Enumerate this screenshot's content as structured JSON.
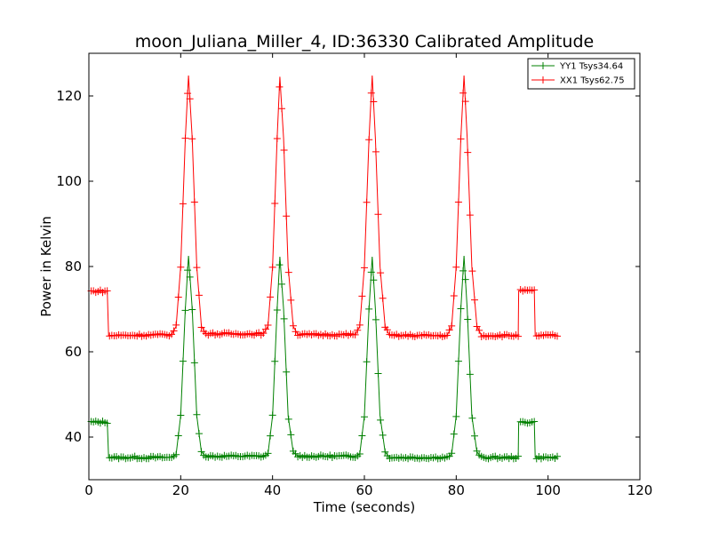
{
  "chart_data": {
    "type": "line",
    "title": "moon_Juliana_Miller_4, ID:36330 Calibrated Amplitude",
    "xlabel": "Time (seconds)",
    "ylabel": "Power in Kelvin",
    "xlim": [
      0,
      120
    ],
    "ylim": [
      30,
      130
    ],
    "xticks": [
      0,
      20,
      40,
      60,
      80,
      100,
      120
    ],
    "yticks": [
      40,
      60,
      80,
      100,
      120
    ],
    "grid": false,
    "legend_position": "top-right",
    "peak_times": [
      21.7,
      41.6,
      61.7,
      81.7
    ],
    "series": [
      {
        "name": "YY1 Tsys34.64",
        "color": "#008000",
        "marker": "+",
        "points": [
          [
            0.5,
            43.5
          ],
          [
            4.0,
            43.5
          ],
          [
            4.3,
            35.2
          ],
          [
            18.0,
            35.2
          ],
          [
            19.0,
            36.0
          ],
          [
            20.0,
            45.0
          ],
          [
            21.0,
            70.0
          ],
          [
            21.7,
            82.5
          ],
          [
            22.5,
            70.0
          ],
          [
            23.5,
            45.0
          ],
          [
            24.5,
            36.5
          ],
          [
            25.5,
            35.5
          ],
          [
            38.0,
            35.5
          ],
          [
            39.0,
            36.0
          ],
          [
            40.0,
            45.0
          ],
          [
            41.0,
            70.0
          ],
          [
            41.6,
            82.3
          ],
          [
            42.4,
            70.0
          ],
          [
            43.4,
            45.0
          ],
          [
            44.5,
            36.5
          ],
          [
            45.5,
            35.5
          ],
          [
            58.0,
            35.5
          ],
          [
            59.0,
            36.0
          ],
          [
            60.0,
            45.0
          ],
          [
            61.0,
            70.0
          ],
          [
            61.7,
            82.3
          ],
          [
            62.4,
            70.0
          ],
          [
            63.4,
            45.0
          ],
          [
            64.5,
            36.5
          ],
          [
            65.5,
            35.2
          ],
          [
            78.0,
            35.2
          ],
          [
            79.0,
            36.0
          ],
          [
            80.0,
            45.0
          ],
          [
            81.0,
            70.0
          ],
          [
            81.7,
            82.5
          ],
          [
            82.4,
            70.0
          ],
          [
            83.4,
            45.0
          ],
          [
            84.5,
            36.5
          ],
          [
            85.5,
            35.2
          ],
          [
            93.5,
            35.2
          ],
          [
            93.6,
            43.5
          ],
          [
            97.0,
            43.5
          ],
          [
            97.2,
            35.2
          ],
          [
            102.0,
            35.2
          ]
        ]
      },
      {
        "name": "XX1 Tsys62.75",
        "color": "#ff0000",
        "marker": "+",
        "points": [
          [
            0.5,
            74.2
          ],
          [
            4.0,
            74.2
          ],
          [
            4.3,
            63.8
          ],
          [
            18.0,
            64.0
          ],
          [
            19.0,
            66.0
          ],
          [
            20.0,
            80.0
          ],
          [
            21.0,
            110.0
          ],
          [
            21.7,
            124.8
          ],
          [
            22.5,
            110.0
          ],
          [
            23.5,
            80.0
          ],
          [
            24.5,
            66.0
          ],
          [
            25.5,
            64.2
          ],
          [
            38.0,
            64.2
          ],
          [
            39.0,
            66.0
          ],
          [
            40.0,
            80.0
          ],
          [
            41.0,
            110.0
          ],
          [
            41.6,
            124.5
          ],
          [
            42.4,
            110.0
          ],
          [
            43.4,
            80.0
          ],
          [
            44.5,
            66.0
          ],
          [
            45.5,
            64.0
          ],
          [
            58.0,
            64.0
          ],
          [
            59.0,
            66.0
          ],
          [
            60.0,
            80.0
          ],
          [
            61.0,
            110.0
          ],
          [
            61.7,
            124.8
          ],
          [
            62.4,
            110.0
          ],
          [
            63.4,
            80.0
          ],
          [
            64.5,
            66.0
          ],
          [
            65.5,
            63.8
          ],
          [
            78.0,
            63.8
          ],
          [
            79.0,
            66.0
          ],
          [
            80.0,
            80.0
          ],
          [
            81.0,
            110.0
          ],
          [
            81.7,
            124.8
          ],
          [
            82.4,
            110.0
          ],
          [
            83.4,
            80.0
          ],
          [
            84.5,
            66.0
          ],
          [
            85.5,
            63.8
          ],
          [
            93.5,
            63.8
          ],
          [
            93.6,
            74.3
          ],
          [
            97.0,
            74.3
          ],
          [
            97.2,
            63.8
          ],
          [
            102.0,
            63.8
          ]
        ]
      }
    ]
  }
}
